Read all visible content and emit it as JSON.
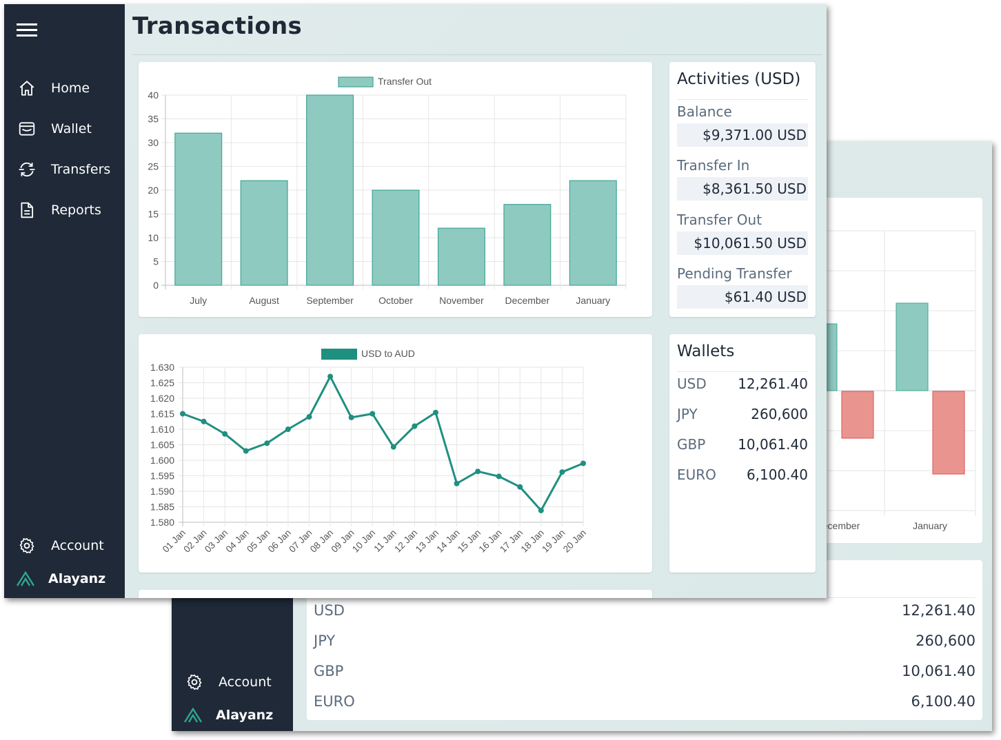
{
  "front": {
    "page_title": "Transactions",
    "nav": [
      {
        "label": "Home",
        "icon": "home-icon"
      },
      {
        "label": "Wallet",
        "icon": "wallet-icon"
      },
      {
        "label": "Transfers",
        "icon": "transfers-icon"
      },
      {
        "label": "Reports",
        "icon": "reports-icon"
      }
    ],
    "account_label": "Account",
    "brand_name": "Alayanz",
    "activities": {
      "title": "Activities (USD)",
      "items": [
        {
          "label": "Balance",
          "value": "$9,371.00 USD"
        },
        {
          "label": "Transfer In",
          "value": "$8,361.50 USD"
        },
        {
          "label": "Transfer Out",
          "value": "$10,061.50 USD"
        },
        {
          "label": "Pending Transfer",
          "value": "$61.40 USD"
        }
      ]
    },
    "wallets": {
      "title": "Wallets",
      "items": [
        {
          "currency": "USD",
          "amount": "12,261.40"
        },
        {
          "currency": "JPY",
          "amount": "260,600"
        },
        {
          "currency": "GBP",
          "amount": "10,061.40"
        },
        {
          "currency": "EURO",
          "amount": "6,100.40"
        }
      ]
    }
  },
  "back": {
    "account_label": "Account",
    "brand_name": "Alayanz",
    "chart_labels": [
      "ecember",
      "January"
    ],
    "wallets": [
      {
        "currency": "USD",
        "amount": "12,261.40"
      },
      {
        "currency": "JPY",
        "amount": "260,600"
      },
      {
        "currency": "GBP",
        "amount": "10,061.40"
      },
      {
        "currency": "EURO",
        "amount": "6,100.40"
      }
    ]
  },
  "colors": {
    "sidebar": "#1f2937",
    "teal_fill": "#8fcac1",
    "teal_stroke": "#3fa596",
    "teal_line": "#1f8f80",
    "red_fill": "#ea9490",
    "red_stroke": "#d9534f"
  },
  "chart_data": [
    {
      "type": "bar",
      "legend": [
        "Transfer Out"
      ],
      "legend_position": "top",
      "categories": [
        "July",
        "August",
        "September",
        "October",
        "November",
        "December",
        "January"
      ],
      "series": [
        {
          "name": "Transfer Out",
          "values": [
            32,
            22,
            40,
            20,
            12,
            17,
            22
          ]
        }
      ],
      "ylim": [
        0,
        40
      ],
      "yticks": [
        0,
        5,
        10,
        15,
        20,
        25,
        30,
        35,
        40
      ],
      "grid": true
    },
    {
      "type": "line",
      "legend": [
        "USD to AUD"
      ],
      "legend_position": "top",
      "x": [
        "01 Jan",
        "02 Jan",
        "03 Jan",
        "04 Jan",
        "05 Jan",
        "06 Jan",
        "07 Jan",
        "08 Jan",
        "09 Jan",
        "10 Jan",
        "11 Jan",
        "12 Jan",
        "13 Jan",
        "14 Jan",
        "15 Jan",
        "16 Jan",
        "17 Jan",
        "18 Jan",
        "19 Jan",
        "20 Jan"
      ],
      "series": [
        {
          "name": "USD to AUD",
          "values": [
            1.615,
            1.6125,
            1.6085,
            1.603,
            1.6055,
            1.61,
            1.614,
            1.627,
            1.6138,
            1.615,
            1.6043,
            1.611,
            1.6154,
            1.5925,
            1.5964,
            1.5948,
            1.5914,
            1.5838,
            1.5962,
            1.599
          ]
        }
      ],
      "ylim": [
        1.58,
        1.63
      ],
      "yticks": [
        "1.580",
        "1.585",
        "1.590",
        "1.595",
        "1.600",
        "1.605",
        "1.610",
        "1.615",
        "1.620",
        "1.625",
        "1.630"
      ],
      "grid": true
    }
  ]
}
